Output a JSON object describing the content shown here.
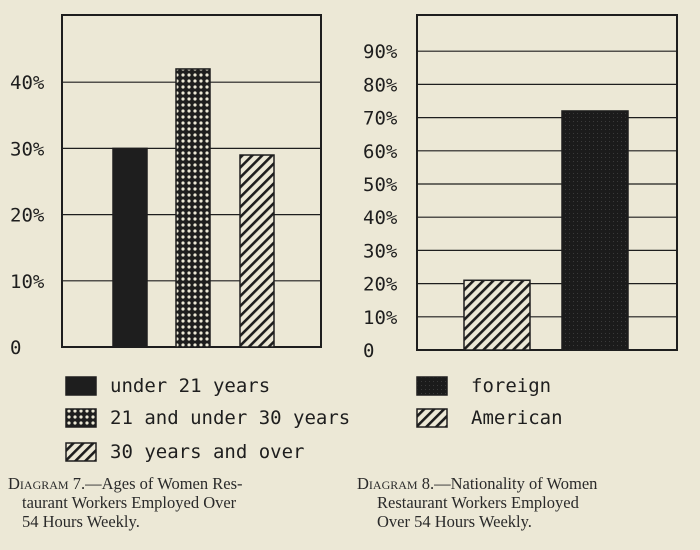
{
  "chart_data": [
    {
      "type": "bar",
      "categories": [
        "under 21 years",
        "21 and under 30 years",
        "30 years and over"
      ],
      "values": [
        30,
        42,
        29
      ],
      "ylim": [
        0,
        50
      ],
      "y_ticks": [
        "0",
        "10%",
        "20%",
        "30%",
        "40%"
      ],
      "legend": [
        "under 21 years",
        "21 and under 30 years",
        "30 years and over"
      ],
      "legend_placement": "bottom",
      "grid": true,
      "fills": [
        "solid",
        "crosshatch",
        "diagonal"
      ],
      "caption": {
        "lead": "Diagram 7.",
        "lines": [
          "—Ages of Women Res-",
          "taurant Workers Employed Over",
          "54 Hours Weekly."
        ]
      }
    },
    {
      "type": "bar",
      "categories": [
        "American",
        "foreign"
      ],
      "values": [
        21,
        72
      ],
      "ylim": [
        0,
        100
      ],
      "y_ticks": [
        "0",
        "10%",
        "20%",
        "30%",
        "40%",
        "50%",
        "60%",
        "70%",
        "80%",
        "90%"
      ],
      "legend": [
        "foreign",
        "American"
      ],
      "legend_placement": "bottom",
      "grid": true,
      "fills": [
        "diagonal",
        "dark-solid"
      ],
      "caption": {
        "lead": "Diagram 8.",
        "lines": [
          "—Nationality of Women",
          "Restaurant Workers Employed",
          "Over 54 Hours Weekly."
        ]
      }
    }
  ],
  "colors": {
    "ink": "#1e1e1e",
    "paper": "#ece8d6"
  }
}
